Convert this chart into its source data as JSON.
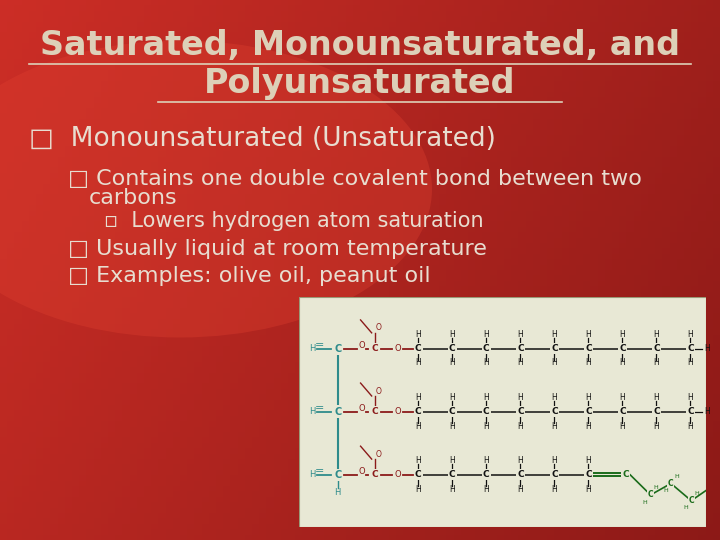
{
  "title_line1": "Saturated, Monounsaturated, and",
  "title_line2": "Polyunsaturated",
  "bullet1_marker": "□",
  "bullet1_text": "Monounsaturated (Unsaturated)",
  "sub1_marker": "□",
  "sub1_text": "Contains one double covalent bond between two",
  "sub1_cont": "carbons",
  "subsub_marker": "▫",
  "subsub_text": "Lowers hydrogen atom saturation",
  "sub2_marker": "□",
  "sub2_text": "Usually liquid at room temperature",
  "sub3_marker": "□",
  "sub3_text": "Examples: olive oil, peanut oil",
  "bg_color": "#c0392b",
  "title_color": "#ddd0b8",
  "text_color": "#e8ddd0",
  "mol_bg": "#e8e8d5",
  "teal": "#2e8b8b",
  "dark_red": "#8b1a1a",
  "green": "#1a6b1a",
  "black": "#111111",
  "title_fontsize": 24,
  "bullet_fontsize": 19,
  "sub_fontsize": 16,
  "subsub_fontsize": 15
}
